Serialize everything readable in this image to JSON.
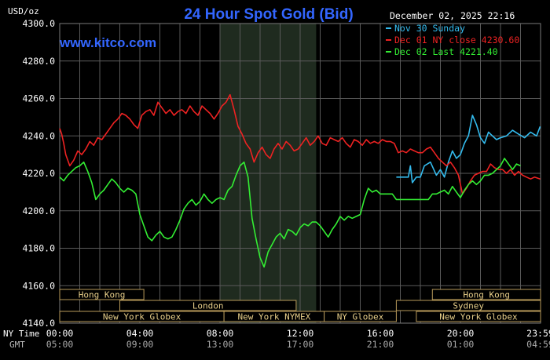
{
  "chart_data": {
    "type": "line",
    "title": "24 Hour Spot Gold (Bid)",
    "ylabel": "USD/oz",
    "watermark": "www.kitco.com",
    "timestamp": "December 02, 2025 22:16",
    "ylim": [
      4140,
      4300
    ],
    "yticks": [
      "4140.0",
      "4160.0",
      "4180.0",
      "4200.0",
      "4220.0",
      "4240.0",
      "4260.0",
      "4280.0",
      "4300.0"
    ],
    "ytick_values": [
      4140,
      4160,
      4180,
      4200,
      4220,
      4240,
      4260,
      4280,
      4300
    ],
    "xlim": [
      0,
      24
    ],
    "x_row_labels": {
      "ny": "NY Time",
      "gmt": "GMT"
    },
    "xticks_ny": [
      "00:00",
      "04:00",
      "08:00",
      "12:00",
      "16:00",
      "20:00",
      "23:59"
    ],
    "xticks_gmt": [
      "05:00",
      "09:00",
      "13:00",
      "17:00",
      "21:00",
      "01:00",
      "04:59"
    ],
    "xtick_hours": [
      0,
      4,
      8,
      12,
      16,
      20,
      23.98
    ],
    "grid": true,
    "legend_placement": "top-right",
    "highlight_band_hours": [
      8,
      12.8
    ],
    "sessions": [
      {
        "label": "Hong Kong",
        "start": 0,
        "end": 4.2,
        "row": 0
      },
      {
        "label": "Hong Kong",
        "start": 18.6,
        "end": 24,
        "row": 0
      },
      {
        "label": "London",
        "start": 3,
        "end": 11.8,
        "row": 1
      },
      {
        "label": "Sydney",
        "start": 16.8,
        "end": 24,
        "row": 1
      },
      {
        "label": "New York Globex",
        "start": 0,
        "end": 8.2,
        "row": 2
      },
      {
        "label": "New York NYMEX",
        "start": 8.2,
        "end": 13.2,
        "row": 2
      },
      {
        "label": "NY Globex",
        "start": 13.2,
        "end": 16.8,
        "row": 2
      },
      {
        "label": "New York Globex",
        "start": 17.8,
        "end": 24,
        "row": 2
      }
    ],
    "series": [
      {
        "name": "Nov 30 Sunday",
        "color": "#33bbee",
        "x": [
          16.8,
          17.2,
          17.4,
          17.5,
          17.6,
          17.8,
          18.0,
          18.2,
          18.5,
          18.8,
          19.0,
          19.2,
          19.4,
          19.6,
          19.8,
          20.0,
          20.2,
          20.4,
          20.6,
          20.8,
          21.0,
          21.2,
          21.4,
          21.6,
          21.8,
          22.0,
          22.3,
          22.6,
          22.9,
          23.2,
          23.5,
          23.8,
          23.98
        ],
        "y": [
          4218,
          4218,
          4218,
          4224,
          4215,
          4218,
          4218,
          4224,
          4226,
          4219,
          4222,
          4218,
          4226,
          4232,
          4228,
          4230,
          4236,
          4240,
          4251,
          4246,
          4239,
          4236,
          4242,
          4240,
          4238,
          4239,
          4240,
          4243,
          4241,
          4239,
          4242,
          4240,
          4245
        ]
      },
      {
        "name": "Dec 01 NY close 4230.60",
        "color": "#ee2222",
        "x": [
          0,
          0.1,
          0.2,
          0.3,
          0.5,
          0.7,
          0.9,
          1.1,
          1.3,
          1.5,
          1.7,
          1.9,
          2.1,
          2.3,
          2.5,
          2.7,
          2.9,
          3.1,
          3.3,
          3.5,
          3.7,
          3.9,
          4.1,
          4.3,
          4.5,
          4.7,
          4.9,
          5.1,
          5.3,
          5.5,
          5.7,
          5.9,
          6.1,
          6.3,
          6.5,
          6.7,
          6.9,
          7.1,
          7.3,
          7.5,
          7.7,
          7.9,
          8.1,
          8.3,
          8.5,
          8.7,
          8.9,
          9.1,
          9.3,
          9.5,
          9.7,
          9.9,
          10.1,
          10.3,
          10.5,
          10.7,
          10.9,
          11.1,
          11.3,
          11.5,
          11.7,
          11.9,
          12.1,
          12.3,
          12.5,
          12.7,
          12.9,
          13.1,
          13.3,
          13.5,
          13.7,
          13.9,
          14.1,
          14.3,
          14.5,
          14.7,
          14.9,
          15.1,
          15.3,
          15.5,
          15.7,
          15.9,
          16.1,
          16.3,
          16.5,
          16.7,
          16.9,
          17.1,
          17.3,
          17.5,
          17.7,
          17.9,
          18.1,
          18.3,
          18.5,
          18.7,
          18.9,
          19.1,
          19.3,
          19.5,
          19.7,
          19.9,
          20.1,
          20.3,
          20.5,
          20.7,
          20.9,
          21.1,
          21.3,
          21.5,
          21.7,
          21.9,
          22.1,
          22.3,
          22.5,
          22.7,
          22.9,
          23.1,
          23.3,
          23.5,
          23.7,
          23.98
        ],
        "y": [
          4244,
          4241,
          4236,
          4230,
          4224,
          4227,
          4232,
          4230,
          4233,
          4237,
          4235,
          4239,
          4238,
          4241,
          4244,
          4247,
          4249,
          4252,
          4251,
          4249,
          4246,
          4244,
          4251,
          4253,
          4254,
          4251,
          4258,
          4255,
          4252,
          4254,
          4251,
          4253,
          4254,
          4252,
          4256,
          4253,
          4251,
          4256,
          4254,
          4252,
          4249,
          4252,
          4256,
          4258,
          4262,
          4254,
          4245,
          4241,
          4236,
          4233,
          4226,
          4231,
          4234,
          4230,
          4228,
          4233,
          4236,
          4233,
          4237,
          4235,
          4232,
          4233,
          4236,
          4239,
          4235,
          4237,
          4240,
          4236,
          4235,
          4239,
          4238,
          4237,
          4239,
          4236,
          4234,
          4238,
          4237,
          4235,
          4238,
          4236,
          4237,
          4236,
          4238,
          4237,
          4237,
          4236,
          4231,
          4232,
          4231,
          4233,
          4232,
          4231,
          4231,
          4233,
          4234,
          4231,
          4228,
          4226,
          4224,
          4226,
          4223,
          4219,
          4209,
          4212,
          4216,
          4219,
          4220,
          4221,
          4221,
          4225,
          4223,
          4222,
          4222,
          4220,
          4222,
          4219,
          4221,
          4219,
          4218,
          4217,
          4218,
          4217
        ]
      },
      {
        "name": "Dec 02 Last 4221.40",
        "color": "#33ee33",
        "x": [
          0,
          0.2,
          0.4,
          0.6,
          0.8,
          1.0,
          1.2,
          1.4,
          1.6,
          1.8,
          2.0,
          2.2,
          2.4,
          2.6,
          2.8,
          3.0,
          3.2,
          3.4,
          3.6,
          3.8,
          4.0,
          4.2,
          4.4,
          4.6,
          4.8,
          5.0,
          5.2,
          5.4,
          5.6,
          5.8,
          6.0,
          6.2,
          6.4,
          6.6,
          6.8,
          7.0,
          7.2,
          7.4,
          7.6,
          7.8,
          8.0,
          8.2,
          8.4,
          8.6,
          8.8,
          9.0,
          9.2,
          9.4,
          9.6,
          9.8,
          10.0,
          10.2,
          10.4,
          10.6,
          10.8,
          11.0,
          11.2,
          11.4,
          11.6,
          11.8,
          12.0,
          12.2,
          12.4,
          12.6,
          12.8,
          13.0,
          13.2,
          13.4,
          13.6,
          13.8,
          14.0,
          14.2,
          14.4,
          14.6,
          14.8,
          15.0,
          15.2,
          15.4,
          15.6,
          15.8,
          16.0,
          16.2,
          16.4,
          16.6,
          16.8,
          17.0,
          17.2,
          17.4,
          17.6,
          17.8,
          18.0,
          18.2,
          18.4,
          18.6,
          18.8,
          19.0,
          19.2,
          19.4,
          19.6,
          19.8,
          20.0,
          20.2,
          20.4,
          20.6,
          20.8,
          21.0,
          21.2,
          21.4,
          21.6,
          21.8,
          22.0,
          22.2,
          22.4,
          22.6,
          22.8,
          23.0
        ],
        "y": [
          4218,
          4216,
          4219,
          4221,
          4223,
          4224,
          4226,
          4221,
          4215,
          4206,
          4209,
          4211,
          4214,
          4217,
          4215,
          4212,
          4210,
          4212,
          4211,
          4209,
          4198,
          4192,
          4186,
          4184,
          4187,
          4189,
          4186,
          4185,
          4186,
          4190,
          4195,
          4201,
          4204,
          4206,
          4203,
          4205,
          4209,
          4206,
          4204,
          4206,
          4207,
          4206,
          4211,
          4213,
          4219,
          4224,
          4226,
          4218,
          4196,
          4185,
          4175,
          4170,
          4178,
          4182,
          4186,
          4188,
          4185,
          4190,
          4189,
          4187,
          4191,
          4193,
          4192,
          4194,
          4194,
          4192,
          4189,
          4186,
          4190,
          4193,
          4197,
          4195,
          4197,
          4196,
          4197,
          4198,
          4206,
          4212,
          4210,
          4211,
          4209,
          4209,
          4209,
          4209,
          4206,
          4206,
          4206,
          4206,
          4206,
          4206,
          4206,
          4206,
          4206,
          4209,
          4209,
          4210,
          4211,
          4209,
          4213,
          4210,
          4207,
          4211,
          4214,
          4216,
          4214,
          4216,
          4219,
          4219,
          4220,
          4222,
          4224,
          4228,
          4225,
          4222,
          4225,
          4224
        ]
      }
    ]
  }
}
